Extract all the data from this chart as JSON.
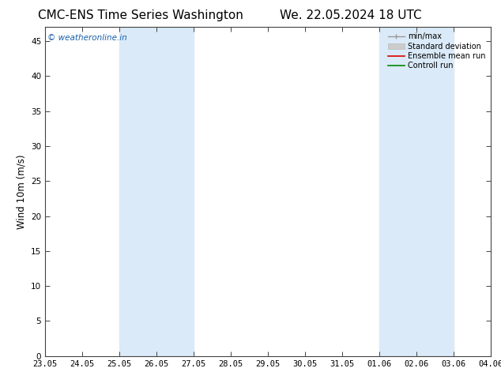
{
  "title": "CMC-ENS Time Series Washington",
  "subtitle": "We. 22.05.2024 18 UTC",
  "ylabel": "Wind 10m (m/s)",
  "watermark": "© weatheronline.in",
  "x_tick_labels": [
    "23.05",
    "24.05",
    "25.05",
    "26.05",
    "27.05",
    "28.05",
    "29.05",
    "30.05",
    "31.05",
    "01.06",
    "02.06",
    "03.06",
    "04.06"
  ],
  "x_tick_positions": [
    0,
    1,
    2,
    3,
    4,
    5,
    6,
    7,
    8,
    9,
    10,
    11,
    12
  ],
  "ylim": [
    0,
    47
  ],
  "y_ticks": [
    0,
    5,
    10,
    15,
    20,
    25,
    30,
    35,
    40,
    45
  ],
  "shaded_regions": [
    {
      "x_start": 2,
      "x_end": 4
    },
    {
      "x_start": 9,
      "x_end": 11
    }
  ],
  "shaded_color": "#daeaf8",
  "legend_items": [
    {
      "label": "min/max",
      "color": "#aaaaaa"
    },
    {
      "label": "Standard deviation",
      "color": "#cccccc"
    },
    {
      "label": "Ensemble mean run",
      "color": "#dd0000"
    },
    {
      "label": "Controll run",
      "color": "#008800"
    }
  ],
  "watermark_color": "#1a5fa8",
  "bg_color": "#ffffff",
  "title_fontsize": 11,
  "tick_fontsize": 7.5,
  "ylabel_fontsize": 8.5,
  "legend_fontsize": 7
}
